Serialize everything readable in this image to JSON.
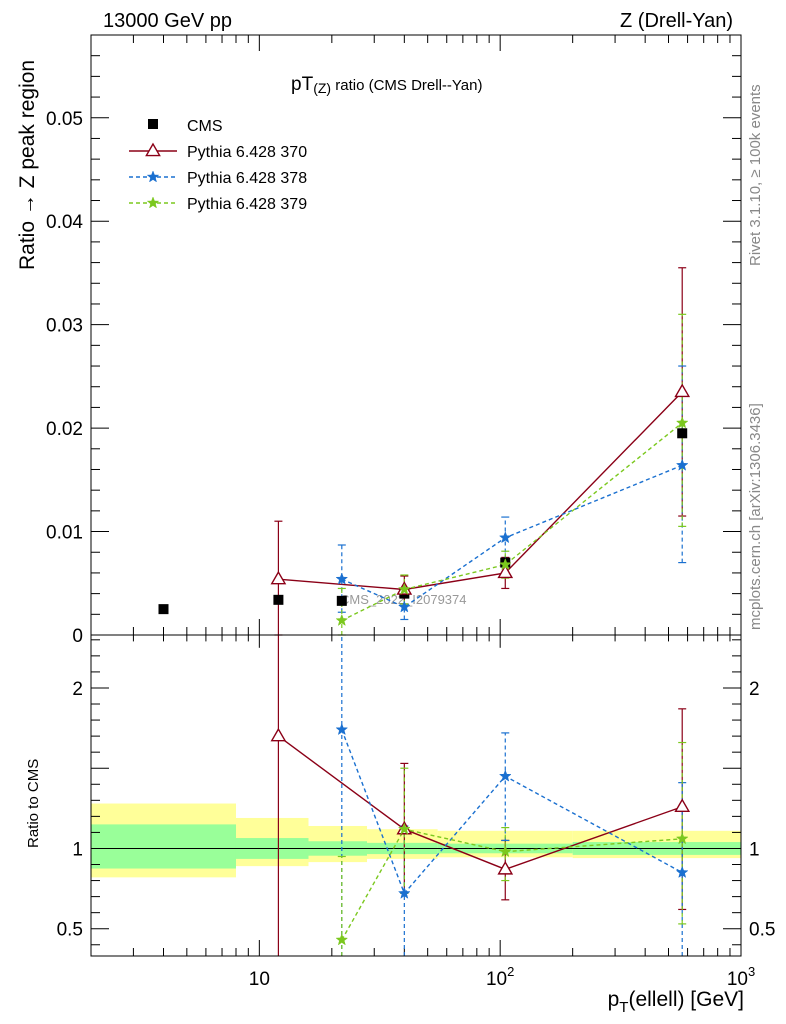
{
  "header": {
    "left": "13000 GeV pp",
    "right": "Z (Drell-Yan)"
  },
  "side_labels": {
    "rivet": "Rivet 3.1.10, ≥ 100k events",
    "mcplots": "mcplots.cern.ch [arXiv:1306.3436]"
  },
  "chart_data": {
    "type": "scatter",
    "title_main": "pT",
    "title_sub": "(Z)",
    "title_rest": " ratio (CMS Drell--Yan)",
    "watermark": "CMS_2022_I2079374",
    "x_label_main": "p",
    "x_label_sub": "T",
    "x_label_rest": "(ellell) [GeV]",
    "y_label_top": "Ratio → Z peak region",
    "y_label_bottom": "Ratio to CMS",
    "x_scale": "log",
    "xlim": [
      2,
      1000
    ],
    "top_ylim": [
      0,
      0.058
    ],
    "bottom_ylim": [
      0.33,
      2.33
    ],
    "x_ticks": [
      {
        "value": 10,
        "label": "10"
      },
      {
        "value": 100,
        "label": "10",
        "sup": "2"
      },
      {
        "value": 1000,
        "label": "10",
        "sup": "3"
      }
    ],
    "top_y_ticks": [
      {
        "value": 0,
        "label": "0"
      },
      {
        "value": 0.01,
        "label": "0.01"
      },
      {
        "value": 0.02,
        "label": "0.02"
      },
      {
        "value": 0.03,
        "label": "0.03"
      },
      {
        "value": 0.04,
        "label": "0.04"
      },
      {
        "value": 0.05,
        "label": "0.05"
      }
    ],
    "bottom_y_ticks": [
      {
        "value": 0.5,
        "label": "0.5"
      },
      {
        "value": 1,
        "label": "1"
      },
      {
        "value": 2,
        "label": "2"
      }
    ],
    "legend_position": "top-left",
    "cms": {
      "name": "CMS",
      "x": [
        4,
        12,
        22,
        40,
        105,
        570
      ],
      "y": [
        0.0025,
        0.0034,
        0.0033,
        0.004,
        0.007,
        0.0195
      ]
    },
    "bands": [
      {
        "x_from": 2,
        "x_to": 8,
        "inner": [
          0.875,
          1.15
        ],
        "outer": [
          0.82,
          1.28
        ]
      },
      {
        "x_from": 8,
        "x_to": 16,
        "inner": [
          0.935,
          1.065
        ],
        "outer": [
          0.89,
          1.19
        ]
      },
      {
        "x_from": 16,
        "x_to": 28,
        "inner": [
          0.955,
          1.045
        ],
        "outer": [
          0.915,
          1.14
        ]
      },
      {
        "x_from": 28,
        "x_to": 55,
        "inner": [
          0.965,
          1.035
        ],
        "outer": [
          0.935,
          1.12
        ]
      },
      {
        "x_from": 55,
        "x_to": 200,
        "inner": [
          0.97,
          1.03
        ],
        "outer": [
          0.945,
          1.11
        ]
      },
      {
        "x_from": 200,
        "x_to": 1000,
        "inner": [
          0.96,
          1.04
        ],
        "outer": [
          0.94,
          1.11
        ]
      }
    ],
    "series": [
      {
        "name": "Pythia 6.428 370",
        "color": "#8b0017",
        "marker": "triangle",
        "dashed": false,
        "x": [
          12,
          40,
          105,
          570
        ],
        "y": [
          0.0054,
          0.0044,
          0.006,
          0.0235
        ],
        "y_lo": [
          0.0,
          0.003,
          0.0045,
          0.0115
        ],
        "y_hi": [
          0.011,
          0.0057,
          0.0075,
          0.0355
        ],
        "ratio": [
          1.7,
          1.12,
          0.87,
          1.26
        ],
        "ratio_lo": [
          0.33,
          0.72,
          0.68,
          0.62
        ],
        "ratio_hi": [
          2.33,
          1.53,
          1.05,
          1.87
        ]
      },
      {
        "name": "Pythia 6.428 378",
        "color": "#1a70d0",
        "marker": "star",
        "dashed": true,
        "x": [
          22,
          40,
          105,
          570
        ],
        "y": [
          0.0054,
          0.0027,
          0.0094,
          0.0164
        ],
        "y_lo": [
          0.0022,
          0.0015,
          0.0073,
          0.007
        ],
        "y_hi": [
          0.0087,
          0.0039,
          0.0114,
          0.026
        ],
        "ratio": [
          1.74,
          0.72,
          1.45,
          0.85
        ],
        "ratio_lo": [
          0.33,
          0.33,
          1.05,
          0.33
        ],
        "ratio_hi": [
          2.33,
          1.14,
          1.72,
          1.41
        ]
      },
      {
        "name": "Pythia 6.428 379",
        "color": "#7bc81e",
        "marker": "star",
        "dashed": true,
        "x": [
          22,
          40,
          105,
          570
        ],
        "y": [
          0.0014,
          0.0044,
          0.0068,
          0.0205
        ],
        "y_lo": [
          0.0,
          0.003,
          0.0055,
          0.0105
        ],
        "y_hi": [
          0.0045,
          0.0058,
          0.0081,
          0.031
        ],
        "ratio": [
          0.43,
          1.12,
          0.98,
          1.06
        ],
        "ratio_lo": [
          0.33,
          0.72,
          0.8,
          0.53
        ],
        "ratio_hi": [
          0.95,
          1.5,
          1.13,
          1.66
        ]
      }
    ]
  }
}
